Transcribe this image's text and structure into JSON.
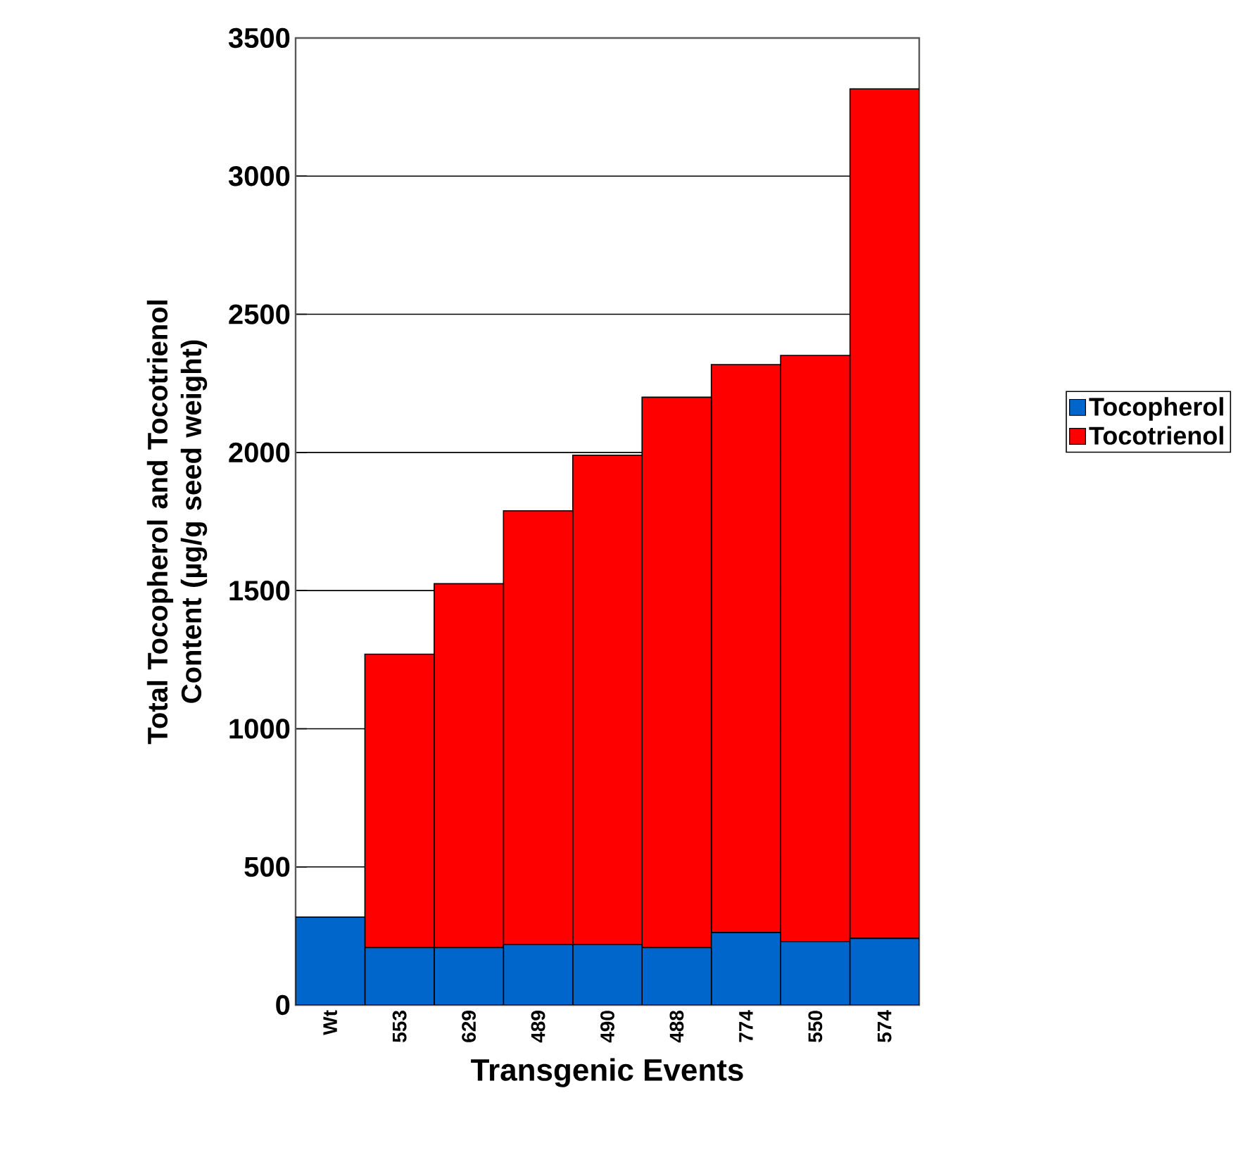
{
  "chart_data": {
    "type": "bar",
    "stacked": true,
    "xlabel": "Transgenic Events",
    "ylabel": "Total Tocopherol and Tocotrienol Content (µg/g seed weight)",
    "categories": [
      "Wt",
      "553",
      "629",
      "489",
      "490",
      "488",
      "774",
      "550",
      "574"
    ],
    "series": [
      {
        "name": "Tocopherol",
        "color": "#0066cc",
        "values": [
          318,
          208,
          208,
          219,
          219,
          208,
          262,
          230,
          241
        ]
      },
      {
        "name": "Tocotrienol",
        "color": "#ff0000",
        "values": [
          null,
          1062,
          1317,
          1570,
          1771,
          1992,
          2056,
          2121,
          3075
        ]
      }
    ],
    "ylim": [
      0,
      3500
    ],
    "yticks": [
      0,
      500,
      1000,
      1500,
      2000,
      2500,
      3000,
      3500
    ],
    "grid": "y",
    "legend": "right"
  }
}
